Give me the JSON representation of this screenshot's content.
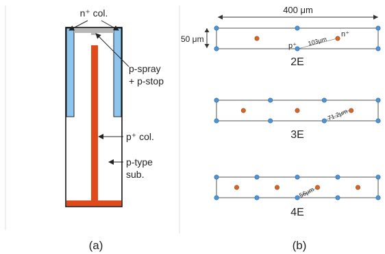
{
  "panel_a": {
    "caption": "(a)",
    "labels": {
      "n_col": "n⁺ col.",
      "p_spray": "p-spray",
      "p_stop": "+ p-stop",
      "p_col": "p⁺ col.",
      "p_type": "p-type",
      "sub": "sub."
    }
  },
  "panel_b": {
    "caption": "(b)",
    "dim_width": "400 μm",
    "dim_height": "50 μm",
    "pitch_2e": "103μm",
    "pitch_3e": "71.2μm",
    "pitch_4e": "56μm",
    "label_n": "n⁺",
    "label_p": "p⁺",
    "layouts": [
      {
        "name": "2E",
        "n_electrodes": 2
      },
      {
        "name": "3E",
        "n_electrodes": 3
      },
      {
        "name": "4E",
        "n_electrodes": 4
      }
    ]
  },
  "colors": {
    "n_column": "#8ec5ee",
    "p_column": "#e04a1a",
    "p_spray": "#b8b8b8",
    "n_dot": "#d0662a",
    "p_dot": "#4d93d6"
  }
}
